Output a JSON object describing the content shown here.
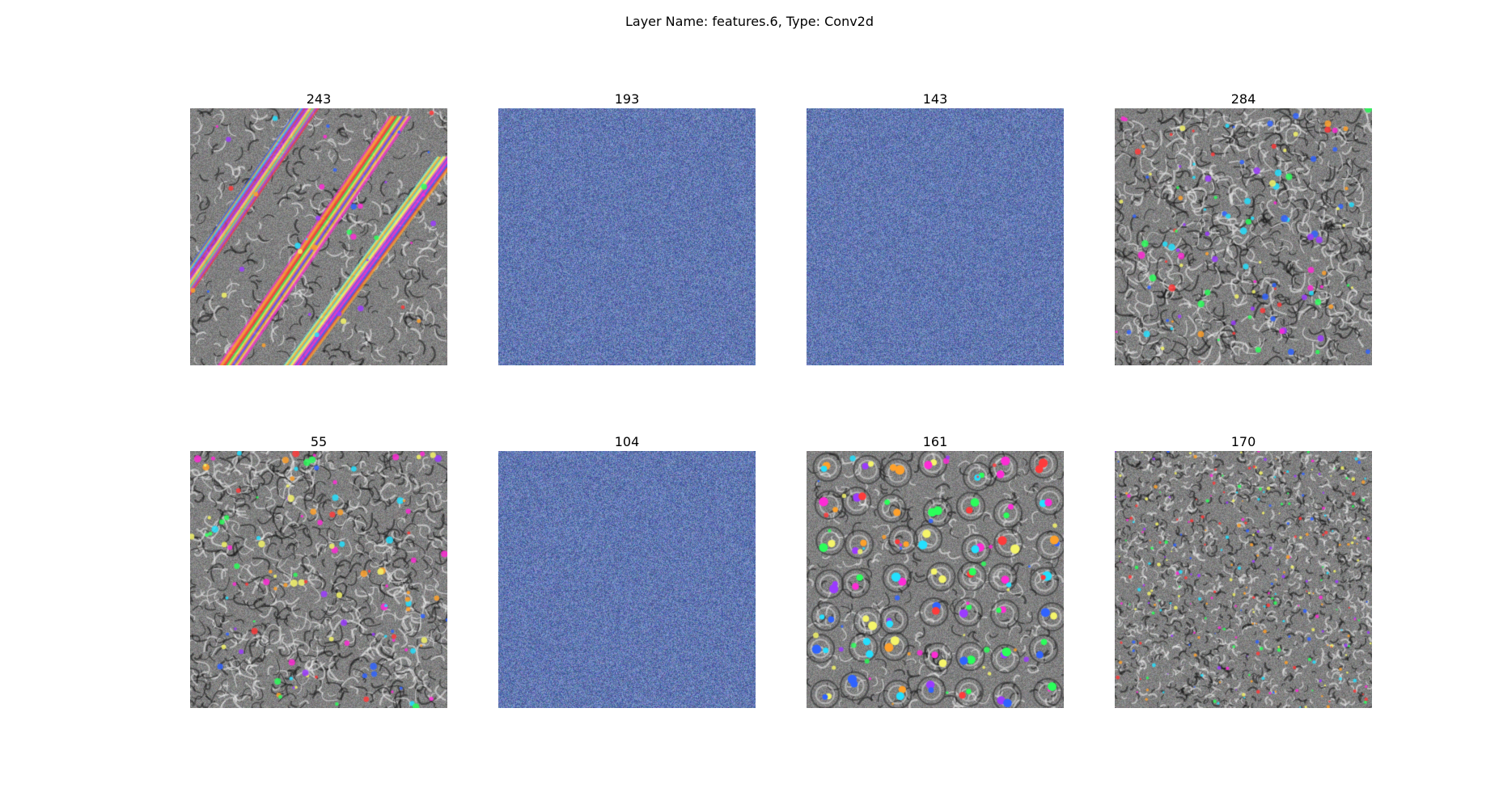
{
  "figure_title": "Layer Name: features.6, Type: Conv2d",
  "panels": [
    {
      "label": "243",
      "pattern": "diagonal-stripes"
    },
    {
      "label": "193",
      "pattern": "blue-noise"
    },
    {
      "label": "143",
      "pattern": "blue-noise"
    },
    {
      "label": "284",
      "pattern": "swirl-blobs"
    },
    {
      "label": "55",
      "pattern": "swirl-blobs"
    },
    {
      "label": "104",
      "pattern": "blue-noise"
    },
    {
      "label": "161",
      "pattern": "eye-spots"
    },
    {
      "label": "170",
      "pattern": "fine-texture"
    }
  ]
}
